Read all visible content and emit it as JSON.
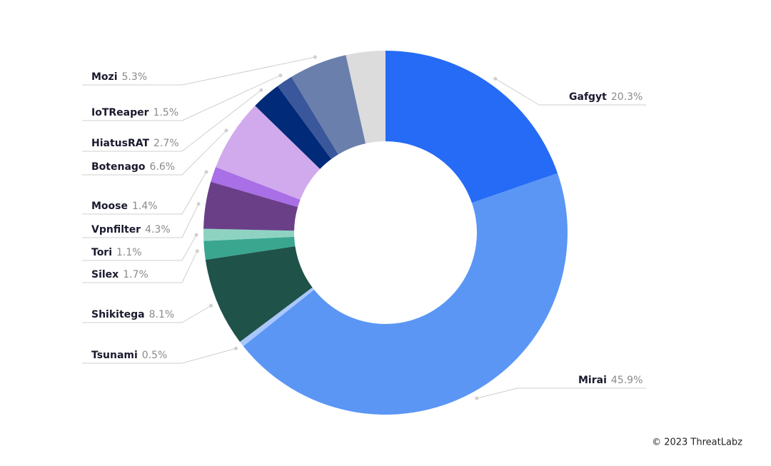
{
  "chart_data": {
    "type": "donut",
    "categories": [
      "Gafgyt",
      "Mirai",
      "Tsunami",
      "Shikitega",
      "Silex",
      "Tori",
      "Vpnfilter",
      "Moose",
      "Botenago",
      "HiatusRAT",
      "IoTReaper",
      "Mozi",
      null
    ],
    "values": [
      20.3,
      45.9,
      0.5,
      8.1,
      1.7,
      1.1,
      4.3,
      1.4,
      6.6,
      2.7,
      1.5,
      5.3,
      3.6
    ],
    "value_labels": [
      "20.3%",
      "45.9%",
      "0.5%",
      "8.1%",
      "1.7%",
      "1.1%",
      "4.3%",
      "1.4%",
      "6.6%",
      "2.7%",
      "1.5%",
      "5.3%",
      null
    ],
    "colors": [
      "#256bf5",
      "#5b96f5",
      "#a9c7fc",
      "#1f5249",
      "#3aa690",
      "#8ed3c2",
      "#6a3f88",
      "#a96fe6",
      "#d1aaee",
      "#012a78",
      "#3a579c",
      "#6a7fac",
      "#dcdcdc"
    ],
    "source": "© 2023 ThreatLabz"
  }
}
